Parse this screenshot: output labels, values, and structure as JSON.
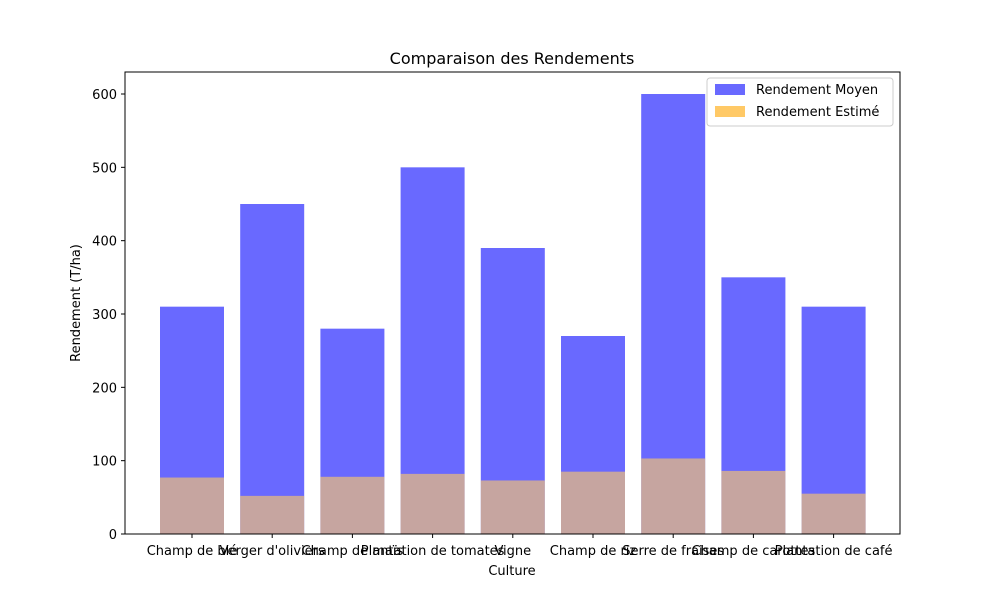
{
  "chart_data": {
    "type": "bar",
    "title": "Comparaison des Rendements",
    "xlabel": "Culture",
    "ylabel": "Rendement (T/ha)",
    "categories": [
      "Champ de blé",
      "Verger d'oliviers",
      "Champ de maïs",
      "Plantation de tomates",
      "Vigne",
      "Champ de riz",
      "Serre de fraises",
      "Champ de carottes",
      "Plantation de café"
    ],
    "series": [
      {
        "name": "Rendement Moyen",
        "color": "#6666ff",
        "values": [
          310,
          450,
          280,
          500,
          390,
          270,
          600,
          350,
          310
        ]
      },
      {
        "name": "Rendement Estimé",
        "color": "#ffc966",
        "values": [
          77,
          52,
          78,
          82,
          73,
          85,
          103,
          86,
          55
        ]
      }
    ],
    "ylim": [
      0,
      630
    ],
    "yticks": [
      0,
      100,
      200,
      300,
      400,
      500,
      600
    ],
    "grid": false,
    "legend_position": "top-right",
    "overlap_color": "#c08c66"
  }
}
